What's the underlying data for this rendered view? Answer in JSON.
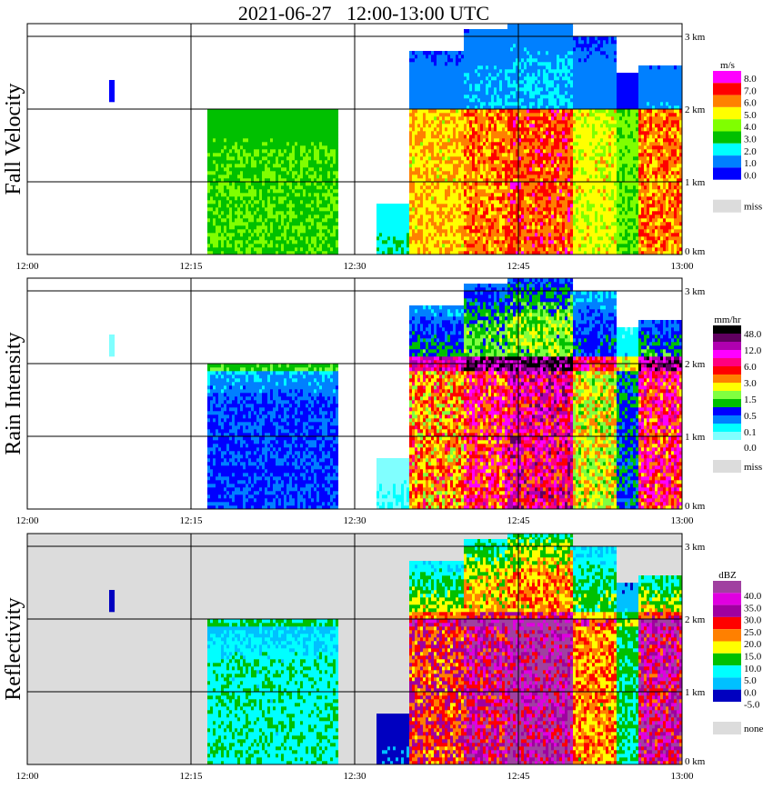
{
  "chart_data": {
    "type": "heatmap",
    "title": "2021-06-27   12:00-13:00 UTC",
    "x_ticks": [
      "12:00",
      "12:15",
      "12:30",
      "12:45",
      "13:00"
    ],
    "x_range_min": [
      0,
      60
    ],
    "y_ticks": [
      "0 km",
      "1 km",
      "2 km",
      "3 km"
    ],
    "y_range_km": [
      0,
      3.18
    ],
    "grid": true,
    "melting_layer_km": 2.0,
    "echo_cells": [
      {
        "t_start": 7.5,
        "t_end": 8.0,
        "base_km": 2.1,
        "top_km": 2.4,
        "strength": 0.15
      },
      {
        "t_start": 16.5,
        "t_end": 28.5,
        "base_km": 0.0,
        "top_km": 2.0,
        "strength": 0.3
      },
      {
        "t_start": 32.0,
        "t_end": 35.0,
        "base_km": 0.0,
        "top_km": 0.7,
        "strength": 0.1
      },
      {
        "t_start": 35.0,
        "t_end": 40.0,
        "base_km": 0.0,
        "top_km": 2.8,
        "strength": 0.7
      },
      {
        "t_start": 40.0,
        "t_end": 44.0,
        "base_km": 0.0,
        "top_km": 3.1,
        "strength": 0.85
      },
      {
        "t_start": 44.0,
        "t_end": 50.0,
        "base_km": 0.0,
        "top_km": 3.2,
        "strength": 0.95
      },
      {
        "t_start": 50.0,
        "t_end": 54.0,
        "base_km": 0.0,
        "top_km": 3.0,
        "strength": 0.6
      },
      {
        "t_start": 54.0,
        "t_end": 56.0,
        "base_km": 0.0,
        "top_km": 2.5,
        "strength": 0.35
      },
      {
        "t_start": 56.0,
        "t_end": 60.0,
        "base_km": 0.0,
        "top_km": 2.6,
        "strength": 0.85
      }
    ],
    "panels": [
      {
        "name": "fall-velocity",
        "ylabel": "Fall Velocity",
        "unit": "m/s",
        "legend_labels": [
          "8.0",
          "7.0",
          "6.0",
          "5.0",
          "4.0",
          "3.0",
          "2.0",
          "1.0",
          "0.0"
        ],
        "legend_colors": [
          "#ff00ff",
          "#ff0000",
          "#ff8000",
          "#ffff00",
          "#80ff00",
          "#00c000",
          "#00ffff",
          "#0080ff",
          "#0000ff"
        ],
        "missing_label": "miss",
        "missing_color": "#dcdcdc"
      },
      {
        "name": "rain-intensity",
        "ylabel": "Rain Intensity",
        "unit": "mm/hr",
        "legend_labels": [
          "48.0",
          "12.0",
          "6.0",
          "3.0",
          "1.5",
          "0.5",
          "0.1",
          "0.0"
        ],
        "legend_colors": [
          "#000000",
          "#600060",
          "#b000b0",
          "#ff00ff",
          "#ff0080",
          "#ff0000",
          "#ff8000",
          "#ffff00",
          "#80ff40",
          "#00c000",
          "#0000ff",
          "#0080ff",
          "#00ffff",
          "#80ffff"
        ],
        "missing_label": "miss",
        "missing_color": "#dcdcdc"
      },
      {
        "name": "reflectivity",
        "ylabel": "Reflectivity",
        "unit": "dBZ",
        "legend_labels": [
          "40.0",
          "35.0",
          "30.0",
          "25.0",
          "20.0",
          "15.0",
          "10.0",
          "5.0",
          "0.0",
          "-5.0"
        ],
        "legend_colors": [
          "#a040a0",
          "#e000e0",
          "#a000a0",
          "#ff0000",
          "#ff8000",
          "#ffff00",
          "#00c000",
          "#00ffff",
          "#00c0ff",
          "#0000c0"
        ],
        "missing_label": "none",
        "missing_color": "#dcdcdc"
      }
    ]
  }
}
